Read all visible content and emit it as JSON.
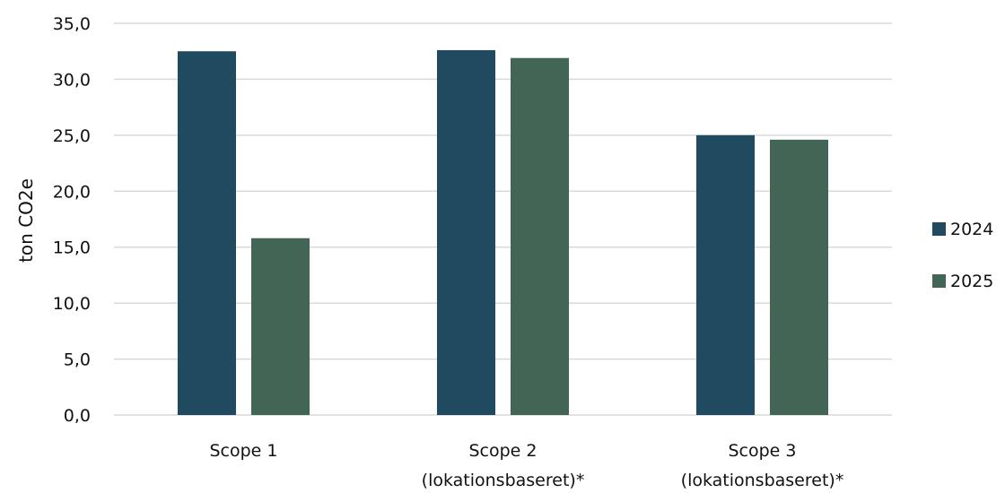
{
  "chart_data": {
    "type": "bar",
    "ylabel": "ton CO2e",
    "ylim": [
      0,
      35
    ],
    "yticks": [
      "0,0",
      "5,0",
      "10,0",
      "15,0",
      "20,0",
      "25,0",
      "30,0",
      "35,0"
    ],
    "grid": true,
    "legend_position": "right",
    "categories": [
      [
        "Scope 1"
      ],
      [
        "Scope 2",
        "(lokationsbaseret)*"
      ],
      [
        "Scope 3",
        "(lokationsbaseret)*"
      ]
    ],
    "series": [
      {
        "name": "2024",
        "color": "#1f4a60",
        "values": [
          32.5,
          32.6,
          25.0
        ]
      },
      {
        "name": "2025",
        "color": "#436556",
        "values": [
          15.8,
          31.9,
          24.6
        ]
      }
    ]
  }
}
